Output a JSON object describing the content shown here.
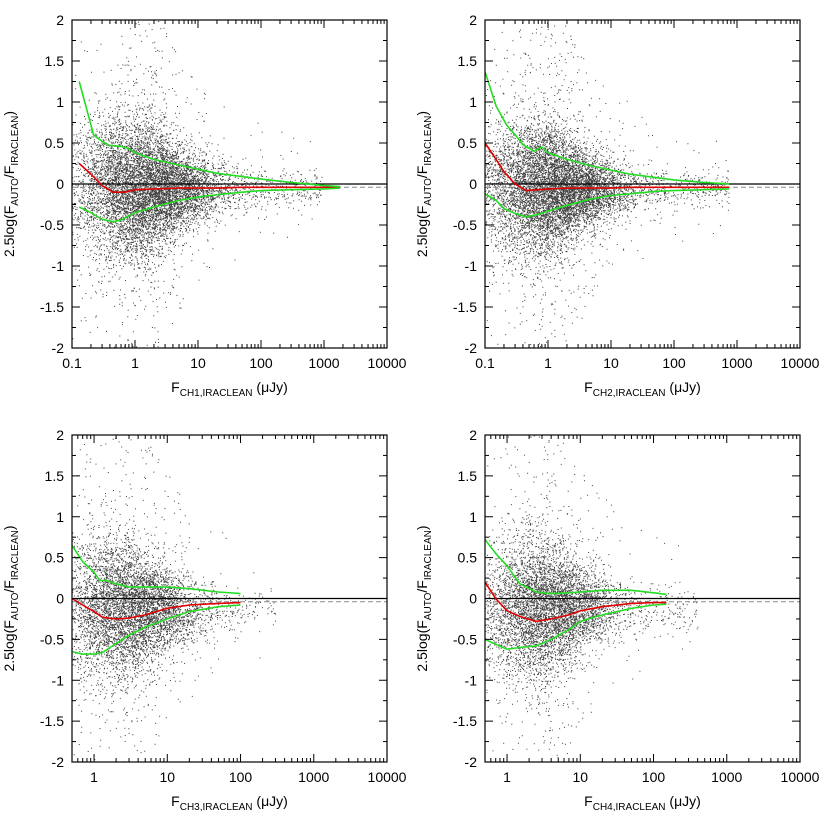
{
  "chart_data": [
    {
      "type": "scatter",
      "panel": "CH1",
      "xlabel": {
        "main": "F",
        "sub": "CH1,IRACLEAN",
        "unit": " (μJy)"
      },
      "ylabel": {
        "pre": "2.5log(F",
        "sub1": "AUTO",
        "mid": "/F",
        "sub2": "IRACLEAN",
        "post": ")"
      },
      "x_scale": "log",
      "xlim": [
        0.1,
        10000
      ],
      "ylim": [
        -2,
        2
      ],
      "x_ticks": [
        0.1,
        1,
        10,
        100,
        1000,
        10000
      ],
      "x_tick_labels": [
        "0.1",
        "1",
        "10",
        "100",
        "1000",
        "10000"
      ],
      "y_ticks": [
        -2,
        -1.5,
        -1,
        -0.5,
        0,
        0.5,
        1,
        1.5,
        2
      ],
      "y_tick_labels": [
        "-2",
        "-1.5",
        "-1",
        "-0.5",
        "0",
        "0.5",
        "1",
        "1.5",
        "2"
      ],
      "scatter_cloud": {
        "x_center": 1.5,
        "log_x_spread": 0.55,
        "x_max": 2000,
        "y_center": -0.05,
        "y_spread": 0.45,
        "n_points": 9000
      },
      "series": [
        {
          "role": "median",
          "color": "#e00000",
          "x": [
            0.13,
            0.2,
            0.3,
            0.45,
            0.7,
            1,
            2,
            5,
            10,
            20,
            50,
            100,
            300,
            1000,
            1800
          ],
          "y": [
            0.25,
            0.12,
            -0.02,
            -0.1,
            -0.1,
            -0.07,
            -0.06,
            -0.05,
            -0.05,
            -0.05,
            -0.04,
            -0.04,
            -0.04,
            -0.04,
            -0.04
          ]
        },
        {
          "role": "upper-bound",
          "color": "#22dd22",
          "x": [
            0.13,
            0.22,
            0.3,
            0.4,
            0.6,
            0.8,
            1,
            2,
            5,
            10,
            20,
            50,
            100,
            300,
            1000,
            1800
          ],
          "y": [
            1.25,
            0.6,
            0.52,
            0.47,
            0.46,
            0.43,
            0.38,
            0.3,
            0.23,
            0.18,
            0.13,
            0.09,
            0.06,
            0.02,
            -0.02,
            -0.03
          ]
        },
        {
          "role": "lower-bound",
          "color": "#22dd22",
          "x": [
            0.13,
            0.2,
            0.3,
            0.45,
            0.6,
            1,
            2,
            5,
            10,
            20,
            50,
            100,
            300,
            1000,
            1800
          ],
          "y": [
            -0.28,
            -0.35,
            -0.43,
            -0.46,
            -0.44,
            -0.35,
            -0.28,
            -0.2,
            -0.16,
            -0.13,
            -0.1,
            -0.08,
            -0.07,
            -0.06,
            -0.05
          ]
        }
      ],
      "reference_lines": [
        {
          "y": 0,
          "style": "solid",
          "color": "#000000"
        },
        {
          "y": -0.04,
          "style": "dashed",
          "color": "#888888"
        }
      ]
    },
    {
      "type": "scatter",
      "panel": "CH2",
      "xlabel": {
        "main": "F",
        "sub": "CH2,IRACLEAN",
        "unit": " (μJy)"
      },
      "ylabel": {
        "pre": "2.5log(F",
        "sub1": "AUTO",
        "mid": "/F",
        "sub2": "IRACLEAN",
        "post": ")"
      },
      "x_scale": "log",
      "xlim": [
        0.1,
        10000
      ],
      "ylim": [
        -2,
        2
      ],
      "x_ticks": [
        0.1,
        1,
        10,
        100,
        1000,
        10000
      ],
      "x_tick_labels": [
        "0.1",
        "1",
        "10",
        "100",
        "1000",
        "10000"
      ],
      "y_ticks": [
        -2,
        -1.5,
        -1,
        -0.5,
        0,
        0.5,
        1,
        1.5,
        2
      ],
      "y_tick_labels": [
        "-2",
        "-1.5",
        "-1",
        "-0.5",
        "0",
        "0.5",
        "1",
        "1.5",
        "2"
      ],
      "scatter_cloud": {
        "x_center": 1.2,
        "log_x_spread": 0.55,
        "x_max": 1000,
        "y_center": -0.05,
        "y_spread": 0.42,
        "n_points": 9000
      },
      "series": [
        {
          "role": "median",
          "color": "#e00000",
          "x": [
            0.1,
            0.15,
            0.2,
            0.3,
            0.45,
            0.7,
            1,
            2,
            5,
            10,
            20,
            50,
            100,
            300,
            750
          ],
          "y": [
            0.5,
            0.3,
            0.15,
            0.0,
            -0.08,
            -0.07,
            -0.06,
            -0.05,
            -0.05,
            -0.05,
            -0.04,
            -0.04,
            -0.04,
            -0.04,
            -0.04
          ]
        },
        {
          "role": "upper-bound",
          "color": "#22dd22",
          "x": [
            0.1,
            0.15,
            0.22,
            0.3,
            0.4,
            0.6,
            0.8,
            1,
            2,
            5,
            10,
            20,
            50,
            100,
            300,
            750
          ],
          "y": [
            1.37,
            0.95,
            0.72,
            0.6,
            0.48,
            0.4,
            0.45,
            0.38,
            0.3,
            0.22,
            0.17,
            0.12,
            0.08,
            0.05,
            0.02,
            0.0
          ]
        },
        {
          "role": "lower-bound",
          "color": "#22dd22",
          "x": [
            0.1,
            0.15,
            0.2,
            0.3,
            0.45,
            0.7,
            1,
            2,
            5,
            10,
            20,
            50,
            100,
            300,
            750
          ],
          "y": [
            -0.12,
            -0.2,
            -0.3,
            -0.36,
            -0.4,
            -0.37,
            -0.33,
            -0.26,
            -0.18,
            -0.14,
            -0.12,
            -0.09,
            -0.08,
            -0.07,
            -0.06
          ]
        }
      ],
      "reference_lines": [
        {
          "y": 0,
          "style": "solid",
          "color": "#000000"
        },
        {
          "y": -0.04,
          "style": "dashed",
          "color": "#888888"
        }
      ]
    },
    {
      "type": "scatter",
      "panel": "CH3",
      "xlabel": {
        "main": "F",
        "sub": "CH3,IRACLEAN",
        "unit": " (μJy)"
      },
      "ylabel": {
        "pre": "2.5log(F",
        "sub1": "AUTO",
        "mid": "/F",
        "sub2": "IRACLEAN",
        "post": ")"
      },
      "x_scale": "log",
      "xlim": [
        0.5,
        10000
      ],
      "ylim": [
        -2,
        2
      ],
      "x_ticks": [
        1,
        10,
        100,
        1000,
        10000
      ],
      "x_tick_labels": [
        "1",
        "10",
        "100",
        "1000",
        "10000"
      ],
      "y_ticks": [
        -2,
        -1.5,
        -1,
        -0.5,
        0,
        0.5,
        1,
        1.5,
        2
      ],
      "y_tick_labels": [
        "-2",
        "-1.5",
        "-1",
        "-0.5",
        "0",
        "0.5",
        "1",
        "1.5",
        "2"
      ],
      "scatter_cloud": {
        "x_center": 3,
        "log_x_spread": 0.45,
        "x_max": 300,
        "y_center": -0.12,
        "y_spread": 0.45,
        "n_points": 6500
      },
      "series": [
        {
          "role": "median",
          "color": "#e00000",
          "x": [
            0.5,
            0.7,
            1,
            1.3,
            2,
            3,
            5,
            10,
            20,
            50,
            100
          ],
          "y": [
            0.0,
            -0.08,
            -0.16,
            -0.23,
            -0.25,
            -0.24,
            -0.2,
            -0.12,
            -0.08,
            -0.06,
            -0.05
          ]
        },
        {
          "role": "upper-bound",
          "color": "#22dd22",
          "x": [
            0.5,
            0.7,
            1,
            1.2,
            1.5,
            2,
            3,
            5,
            10,
            20,
            50,
            100
          ],
          "y": [
            0.65,
            0.45,
            0.32,
            0.22,
            0.22,
            0.18,
            0.14,
            0.14,
            0.14,
            0.12,
            0.08,
            0.06
          ]
        },
        {
          "role": "lower-bound",
          "color": "#22dd22",
          "x": [
            0.5,
            0.7,
            1,
            1.3,
            2,
            3,
            5,
            10,
            20,
            50,
            100
          ],
          "y": [
            -0.65,
            -0.68,
            -0.68,
            -0.66,
            -0.55,
            -0.45,
            -0.35,
            -0.25,
            -0.16,
            -0.1,
            -0.08
          ]
        }
      ],
      "reference_lines": [
        {
          "y": 0,
          "style": "solid",
          "color": "#000000"
        },
        {
          "y": -0.04,
          "style": "dashed",
          "color": "#888888"
        }
      ]
    },
    {
      "type": "scatter",
      "panel": "CH4",
      "xlabel": {
        "main": "F",
        "sub": "CH4,IRACLEAN",
        "unit": " (μJy)"
      },
      "ylabel": {
        "pre": "2.5log(F",
        "sub1": "AUTO",
        "mid": "/F",
        "sub2": "IRACLEAN",
        "post": ")"
      },
      "x_scale": "log",
      "xlim": [
        0.5,
        10000
      ],
      "ylim": [
        -2,
        2
      ],
      "x_ticks": [
        1,
        10,
        100,
        1000,
        10000
      ],
      "x_tick_labels": [
        "1",
        "10",
        "100",
        "1000",
        "10000"
      ],
      "y_ticks": [
        -2,
        -1.5,
        -1,
        -0.5,
        0,
        0.5,
        1,
        1.5,
        2
      ],
      "y_tick_labels": [
        "-2",
        "-1.5",
        "-1",
        "-0.5",
        "0",
        "0.5",
        "1",
        "1.5",
        "2"
      ],
      "scatter_cloud": {
        "x_center": 3.5,
        "log_x_spread": 0.45,
        "x_max": 400,
        "y_center": -0.12,
        "y_spread": 0.45,
        "n_points": 6500
      },
      "series": [
        {
          "role": "median",
          "color": "#e00000",
          "x": [
            0.5,
            0.7,
            1,
            1.5,
            2.5,
            4,
            7,
            10,
            20,
            50,
            100,
            150
          ],
          "y": [
            0.2,
            0.0,
            -0.15,
            -0.22,
            -0.28,
            -0.25,
            -0.2,
            -0.15,
            -0.1,
            -0.06,
            -0.05,
            -0.05
          ]
        },
        {
          "role": "upper-bound",
          "color": "#22dd22",
          "x": [
            0.5,
            0.7,
            1,
            1.5,
            2.5,
            4,
            7,
            10,
            20,
            50,
            100,
            150
          ],
          "y": [
            0.72,
            0.55,
            0.4,
            0.18,
            0.08,
            0.06,
            0.07,
            0.08,
            0.1,
            0.1,
            0.07,
            0.05
          ]
        },
        {
          "role": "lower-bound",
          "color": "#22dd22",
          "x": [
            0.5,
            0.7,
            1,
            1.5,
            2.5,
            4,
            7,
            10,
            20,
            50,
            100,
            150
          ],
          "y": [
            -0.5,
            -0.56,
            -0.62,
            -0.6,
            -0.58,
            -0.5,
            -0.38,
            -0.28,
            -0.2,
            -0.12,
            -0.08,
            -0.07
          ]
        }
      ],
      "reference_lines": [
        {
          "y": 0,
          "style": "solid",
          "color": "#000000"
        },
        {
          "y": -0.04,
          "style": "dashed",
          "color": "#888888"
        }
      ]
    }
  ]
}
